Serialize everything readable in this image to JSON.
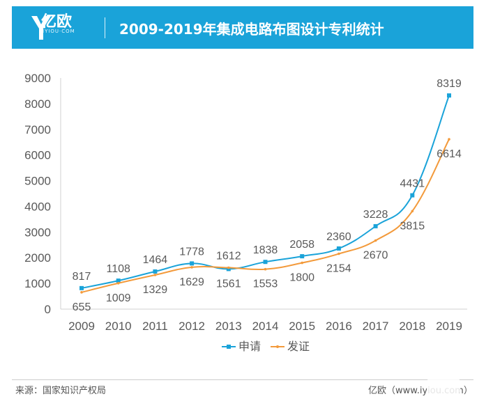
{
  "header": {
    "logo_name": "亿欧",
    "logo_sub": "IYIOU·COM",
    "title": "2009-2019年集成电路布图设计专利统计"
  },
  "footer": {
    "source": "来源：国家知识产权局",
    "credit": "亿欧（www.iyiou.com）"
  },
  "colors": {
    "header_bg": "#1aa3d9",
    "series_apply": "#1aa3d9",
    "series_grant": "#f39a3b"
  },
  "chart_data": {
    "type": "line",
    "x": [
      "2009",
      "2010",
      "2011",
      "2012",
      "2013",
      "2014",
      "2015",
      "2016",
      "2017",
      "2018",
      "2019"
    ],
    "ylim": [
      0,
      9000
    ],
    "yticks": [
      "0",
      "1000",
      "2000",
      "3000",
      "4000",
      "5000",
      "6000",
      "7000",
      "8000",
      "9000"
    ],
    "grid": false,
    "legend_position": "bottom",
    "series": [
      {
        "name": "申请",
        "values": [
          817,
          1108,
          1464,
          1778,
          1561,
          1838,
          2058,
          2360,
          3228,
          4431,
          8319
        ],
        "labels": [
          "817",
          "1108",
          "1464",
          "1778",
          "1561",
          "1838",
          "2058",
          "2360",
          "3228",
          "4431",
          "8319"
        ]
      },
      {
        "name": "发证",
        "values": [
          655,
          1009,
          1329,
          1629,
          1612,
          1553,
          1800,
          2154,
          2670,
          3815,
          6614
        ],
        "labels": [
          "655",
          "1009",
          "1329",
          "1629",
          "1612",
          "1553",
          "1800",
          "2154",
          "2670",
          "3815",
          "6614"
        ]
      }
    ]
  }
}
